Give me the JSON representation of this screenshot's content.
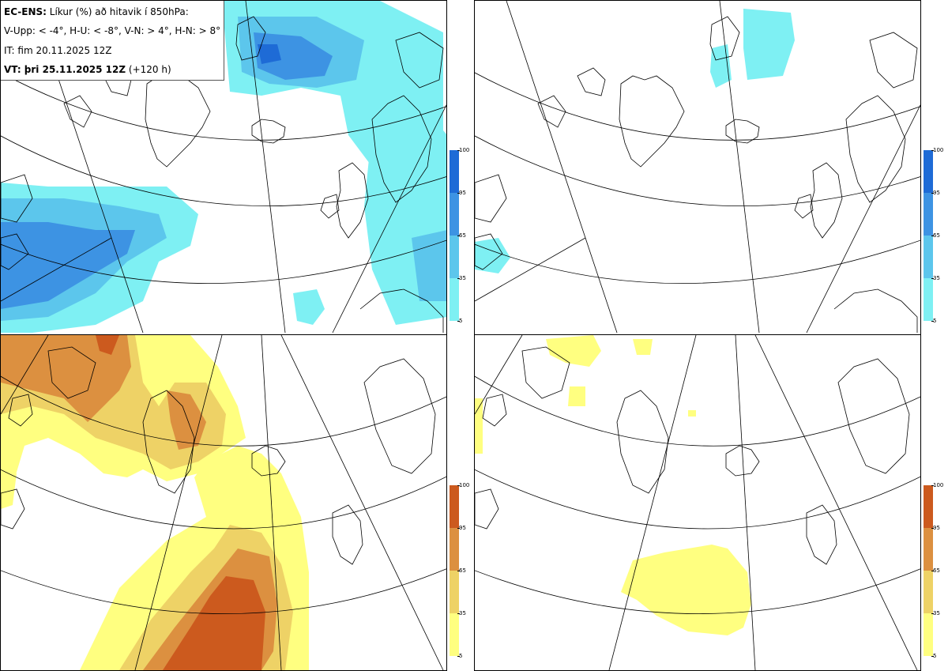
{
  "info": {
    "line1_bold": "EC-ENS:",
    "line1_rest": " Líkur (%) að hitavik í 850hPa:",
    "line2": "V-Upp: < -4°, H-U: < -8°, V-N: > 4°, H-N: > 8°",
    "line3": "IT: fim 20.11.2025 12Z",
    "line4_bold": "VT: þri 25.11.2025 12Z",
    "line4_rest": " (+120 h)"
  },
  "colorbars": {
    "cold": {
      "ticks": [
        "100",
        "95",
        "65",
        "35",
        "5"
      ],
      "colors": [
        "#1e6bd6",
        "#3d93e3",
        "#5cc6ec",
        "#7ef0f3"
      ]
    },
    "warm": {
      "ticks": [
        "100",
        "95",
        "65",
        "35",
        "5"
      ],
      "colors": [
        "#cc5a1e",
        "#dc9040",
        "#eed266",
        "#ffff80"
      ]
    }
  },
  "panels": [
    {
      "id": "top-left",
      "field": "cold",
      "level": "< -4°"
    },
    {
      "id": "top-right",
      "field": "cold",
      "level": "< -8°"
    },
    {
      "id": "bottom-left",
      "field": "warm",
      "level": "> 4°"
    },
    {
      "id": "bottom-right",
      "field": "warm",
      "level": "> 8°"
    }
  ]
}
